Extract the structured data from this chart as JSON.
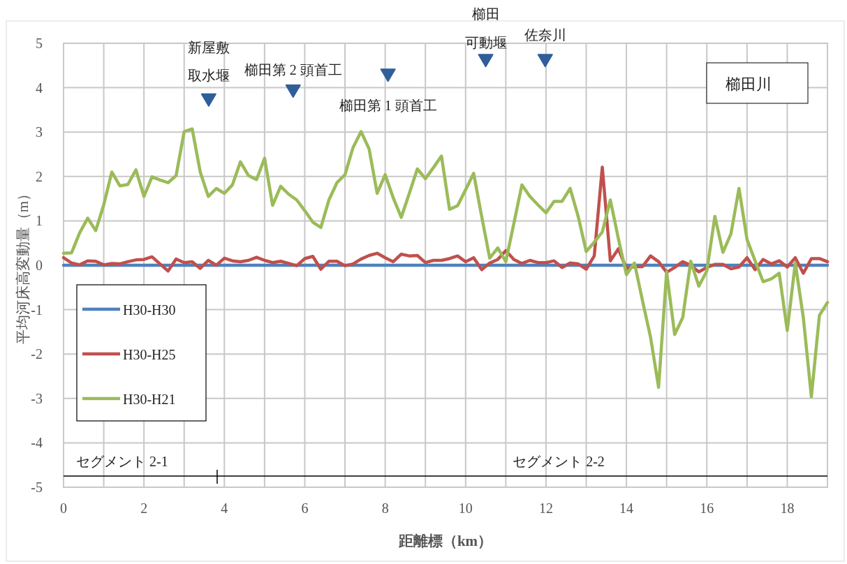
{
  "chart_data": {
    "type": "line",
    "xlabel": "距離標（km）",
    "ylabel": "平均河床高変動量（m）",
    "xlim": [
      0,
      19
    ],
    "ylim": [
      -5,
      5
    ],
    "xticks": [
      0,
      {
        "value": 1,
        "label": null
      },
      2,
      {
        "value": 3,
        "label": null
      },
      4,
      {
        "value": 5,
        "label": null
      },
      6,
      {
        "value": 7,
        "label": null
      },
      8,
      {
        "value": 9,
        "label": null
      },
      10,
      {
        "value": 11,
        "label": null
      },
      12,
      {
        "value": 13,
        "label": null
      },
      14,
      {
        "value": 15,
        "label": null
      },
      16,
      {
        "value": 17,
        "label": null
      },
      18,
      {
        "value": 19,
        "label": null
      }
    ],
    "yticks": [
      -5,
      -4,
      -3,
      -2,
      -1,
      0,
      1,
      2,
      3,
      4,
      5
    ],
    "grid": true,
    "legend": "left",
    "marker": "none",
    "line_style": "solid",
    "x": [
      0,
      0.2,
      0.4,
      0.6,
      0.8,
      1,
      1.2,
      1.4,
      1.6,
      1.8,
      2,
      2.2,
      2.4,
      2.6,
      2.8,
      3,
      3.2,
      3.4,
      3.6,
      3.8,
      4,
      4.2,
      4.4,
      4.6,
      4.8,
      5,
      5.2,
      5.4,
      5.6,
      5.8,
      6,
      6.2,
      6.4,
      6.6,
      6.8,
      7,
      7.2,
      7.4,
      7.6,
      7.8,
      8,
      8.2,
      8.4,
      8.6,
      8.8,
      9,
      9.2,
      9.4,
      9.6,
      9.8,
      10,
      10.2,
      10.4,
      10.6,
      10.8,
      11,
      11.2,
      11.4,
      11.6,
      11.8,
      12,
      12.2,
      12.4,
      12.6,
      12.8,
      13,
      13.2,
      13.4,
      13.6,
      13.8,
      14,
      14.2,
      14.4,
      14.6,
      14.8,
      15,
      15.2,
      15.4,
      15.6,
      15.8,
      16,
      16.2,
      16.4,
      16.6,
      16.8,
      17,
      17.2,
      17.4,
      17.6,
      17.8,
      18,
      18.2,
      18.4,
      18.6,
      18.8,
      19
    ],
    "series": [
      {
        "name": "H30-H30",
        "color": "#4f81bd",
        "values": [
          0,
          0,
          0,
          0,
          0,
          0,
          0,
          0,
          0,
          0,
          0,
          0,
          0,
          0,
          0,
          0,
          0,
          0,
          0,
          0,
          0,
          0,
          0,
          0,
          0,
          0,
          0,
          0,
          0,
          0,
          0,
          0,
          0,
          0,
          0,
          0,
          0,
          0,
          0,
          0,
          0,
          0,
          0,
          0,
          0,
          0,
          0,
          0,
          0,
          0,
          0,
          0,
          0,
          0,
          0,
          0,
          0,
          0,
          0,
          0,
          0,
          0,
          0,
          0,
          0,
          0,
          0,
          0,
          0,
          0,
          0,
          0,
          0,
          0,
          0,
          0,
          0,
          0,
          0,
          0,
          0,
          0,
          0,
          0,
          0,
          0,
          0,
          0,
          0,
          0,
          0,
          0,
          0,
          0,
          0,
          0
        ]
      },
      {
        "name": "H30-H25",
        "color": "#c0504d",
        "values": [
          0.17,
          0.05,
          0.01,
          0.1,
          0.09,
          0.01,
          0.04,
          0.03,
          0.08,
          0.12,
          0.13,
          0.19,
          0.03,
          -0.13,
          0.14,
          0.06,
          0.08,
          -0.07,
          0.11,
          0,
          0.16,
          0.1,
          0.08,
          0.11,
          0.18,
          0.11,
          0.06,
          0.09,
          0.04,
          -0.01,
          0.15,
          0.2,
          -0.09,
          0.09,
          0.09,
          -0.01,
          0.03,
          0.14,
          0.22,
          0.27,
          0.17,
          0.08,
          0.25,
          0.21,
          0.22,
          0.06,
          0.11,
          0.11,
          0.15,
          0.21,
          0.08,
          0.17,
          -0.1,
          0.05,
          0.13,
          0.33,
          0.13,
          0.04,
          0.11,
          0.06,
          0.06,
          0.1,
          -0.05,
          0.05,
          0.03,
          -0.09,
          0.21,
          2.21,
          0.1,
          0.37,
          -0.08,
          -0.03,
          -0.03,
          0.21,
          0.08,
          -0.16,
          -0.05,
          0.08,
          0,
          -0.15,
          -0.05,
          0.02,
          0.02,
          -0.08,
          -0.04,
          0.17,
          -0.1,
          0.13,
          0.03,
          0.1,
          -0.04,
          0.17,
          -0.18,
          0.15,
          0.15,
          0.08
        ]
      },
      {
        "name": "H30-H21",
        "color": "#9bbb59",
        "values": [
          0.27,
          0.28,
          0.73,
          1.06,
          0.78,
          1.36,
          2.1,
          1.79,
          1.82,
          2.15,
          1.55,
          1.99,
          1.92,
          1.86,
          2.02,
          3.01,
          3.07,
          2.1,
          1.55,
          1.73,
          1.62,
          1.81,
          2.33,
          2.02,
          1.93,
          2.41,
          1.35,
          1.78,
          1.6,
          1.47,
          1.23,
          0.97,
          0.85,
          1.47,
          1.86,
          2.04,
          2.65,
          3.01,
          2.62,
          1.62,
          2.04,
          1.52,
          1.08,
          1.62,
          2.17,
          1.95,
          2.2,
          2.46,
          1.26,
          1.34,
          1.7,
          2.07,
          1.1,
          0.16,
          0.39,
          0.08,
          0.94,
          1.81,
          1.55,
          1.36,
          1.18,
          1.44,
          1.44,
          1.73,
          1.1,
          0.31,
          0.52,
          0.75,
          1.47,
          0.6,
          -0.21,
          0.05,
          -0.8,
          -1.62,
          -2.75,
          -0.15,
          -1.56,
          -1.18,
          0.09,
          -0.47,
          -0.13,
          1.1,
          0.29,
          0.71,
          1.73,
          0.58,
          0.1,
          -0.37,
          -0.31,
          -0.18,
          -1.47,
          0.05,
          -1.18,
          -2.96,
          -1.13,
          -0.84
        ]
      },
      {
        "type": "scatter",
        "marker": "triangle",
        "color": "#2f5f98",
        "x": [
          3.61,
          5.71,
          8.07,
          10.5,
          11.98
        ],
        "values": [
          3.73,
          3.93,
          4.29,
          4.62,
          4.62
        ]
      }
    ],
    "annotations": [
      "櫛田川",
      "セグメント 2-1",
      "セグメント 2-2",
      "新屋敷",
      {
        "text": "取水堰",
        "x": 3.61,
        "y": 3.73
      },
      {
        "text": "櫛田第 2 頭首工",
        "x": 5.71,
        "y": 3.93
      },
      {
        "text": "櫛田第 1 頭首工",
        "x": 8.07,
        "y": 4.29
      },
      {
        "text": "櫛田",
        "x": 10.5,
        "y": 4.62
      },
      {
        "text": "可動堰",
        "x": 10.5,
        "y": 4.62
      },
      {
        "text": "佐奈川",
        "x": 11.98,
        "y": 4.62
      }
    ],
    "ref_lines": [
      {
        "axis": "y",
        "value": -4.75,
        "color": "#000000"
      }
    ]
  }
}
